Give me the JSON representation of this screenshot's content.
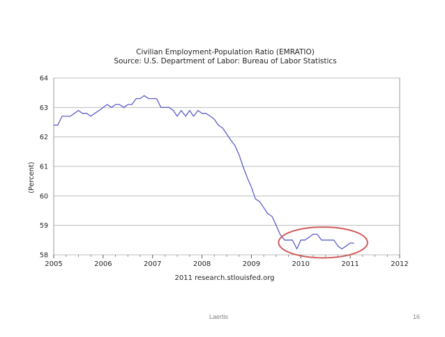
{
  "slide": {
    "footer_text": "Laertis",
    "page_number": "16"
  },
  "chart_data": {
    "type": "line",
    "title": "Civilian Employment-Population Ratio (EMRATIO)",
    "subtitle": "Source: U.S. Department of Labor: Bureau of Labor Statistics",
    "ylabel": "(Percent)",
    "xlabel": "",
    "credit": "2011 research.stlouisfed.org",
    "xlim": [
      2005,
      2012
    ],
    "ylim": [
      58,
      64
    ],
    "x_ticks": [
      "2005",
      "2006",
      "2007",
      "2008",
      "2009",
      "2010",
      "2011",
      "2012"
    ],
    "y_ticks": [
      "58",
      "59",
      "60",
      "61",
      "62",
      "63",
      "64"
    ],
    "grid": "horizontal",
    "series": [
      {
        "color": "#5b5bc8",
        "x": [
          2005.0,
          2005.08,
          2005.17,
          2005.25,
          2005.33,
          2005.42,
          2005.5,
          2005.58,
          2005.67,
          2005.75,
          2005.83,
          2005.92,
          2006.0,
          2006.08,
          2006.17,
          2006.25,
          2006.33,
          2006.42,
          2006.5,
          2006.58,
          2006.67,
          2006.75,
          2006.83,
          2006.92,
          2007.0,
          2007.08,
          2007.17,
          2007.25,
          2007.33,
          2007.42,
          2007.5,
          2007.58,
          2007.67,
          2007.75,
          2007.83,
          2007.92,
          2008.0,
          2008.08,
          2008.17,
          2008.25,
          2008.33,
          2008.42,
          2008.5,
          2008.58,
          2008.67,
          2008.75,
          2008.83,
          2008.92,
          2009.0,
          2009.08,
          2009.17,
          2009.25,
          2009.33,
          2009.42,
          2009.5,
          2009.58,
          2009.67,
          2009.75,
          2009.83,
          2009.92,
          2010.0,
          2010.08,
          2010.17,
          2010.25,
          2010.33,
          2010.42,
          2010.5,
          2010.58,
          2010.67,
          2010.75,
          2010.83,
          2010.92,
          2011.0,
          2011.08
        ],
        "values": [
          62.4,
          62.4,
          62.7,
          62.7,
          62.7,
          62.8,
          62.9,
          62.8,
          62.8,
          62.7,
          62.8,
          62.9,
          63.0,
          63.1,
          63.0,
          63.1,
          63.1,
          63.0,
          63.1,
          63.1,
          63.3,
          63.3,
          63.4,
          63.3,
          63.3,
          63.3,
          63.0,
          63.0,
          63.0,
          62.9,
          62.7,
          62.9,
          62.7,
          62.9,
          62.7,
          62.9,
          62.8,
          62.8,
          62.7,
          62.6,
          62.4,
          62.3,
          62.1,
          61.9,
          61.7,
          61.4,
          61.0,
          60.6,
          60.3,
          59.9,
          59.8,
          59.6,
          59.4,
          59.3,
          59.0,
          58.7,
          58.5,
          58.5,
          58.5,
          58.2,
          58.5,
          58.5,
          58.6,
          58.7,
          58.7,
          58.5,
          58.5,
          58.5,
          58.5,
          58.3,
          58.2,
          58.3,
          58.4,
          58.4
        ]
      }
    ],
    "annotation": {
      "type": "ellipse",
      "color": "#d05a5a",
      "note": ""
    }
  }
}
